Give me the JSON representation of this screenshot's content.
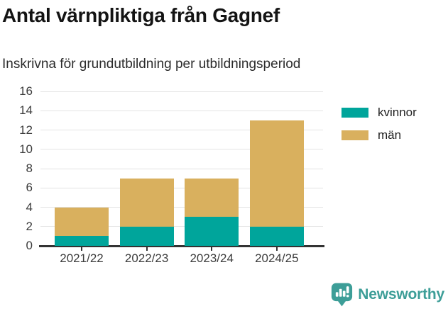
{
  "header": {
    "title": "Antal värnpliktiga från Gagnef",
    "subtitle": "Inskrivna för grundutbildning per utbildningsperiod"
  },
  "chart_data": {
    "type": "bar",
    "stacked": true,
    "title": "Antal värnpliktiga från Gagnef",
    "subtitle": "Inskrivna för grundutbildning per utbildningsperiod",
    "categories": [
      "2021/22",
      "2022/23",
      "2023/24",
      "2024/25"
    ],
    "series": [
      {
        "name": "kvinnor",
        "color": "#00a59b",
        "values": [
          1,
          2,
          3,
          2
        ]
      },
      {
        "name": "män",
        "color": "#d9b05e",
        "values": [
          3,
          5,
          4,
          11
        ]
      }
    ],
    "totals": [
      4,
      7,
      7,
      13
    ],
    "xlabel": "",
    "ylabel": "",
    "ylim": [
      0,
      16
    ],
    "ytick_step": 2,
    "grid": true,
    "legend_position": "top-right"
  },
  "style": {
    "gridline_color": "#e3e3e3",
    "axis_color": "#333333",
    "axis_label_color": "#3c3c3c"
  },
  "footer": {
    "brand": "Newsworthy",
    "brand_color": "#3d9e98"
  }
}
